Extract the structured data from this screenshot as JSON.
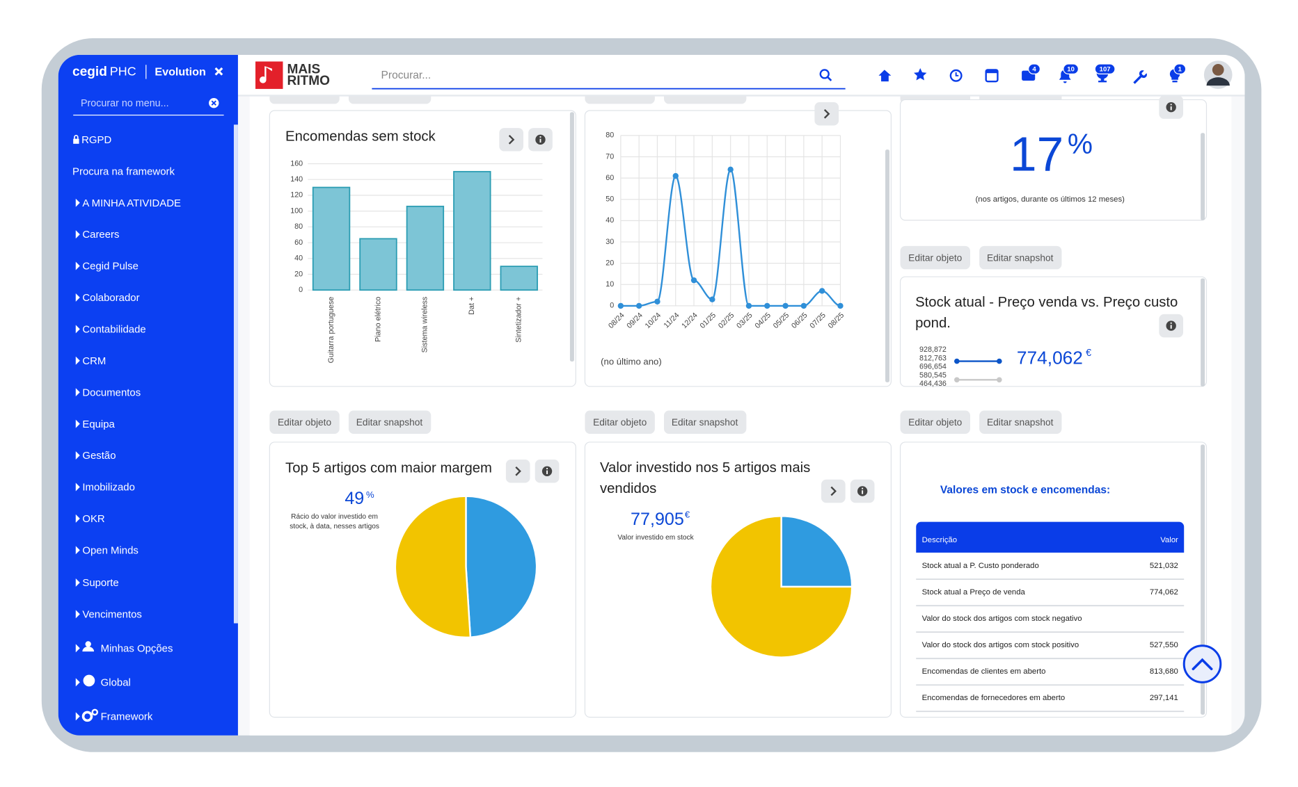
{
  "sidebar": {
    "brand": "cegid",
    "product": "PHC",
    "edition": "Evolution",
    "search_placeholder": "Procurar no menu...",
    "items": [
      "RGPD",
      "Procura na framework",
      "A MINHA ATIVIDADE",
      "Careers",
      "Cegid Pulse",
      "Colaborador",
      "Contabilidade",
      "CRM",
      "Documentos",
      "Equipa",
      "Gestão",
      "Imobilizado",
      "OKR",
      "Open Minds",
      "Suporte",
      "Vencimentos",
      "Minhas Opções",
      "Global",
      "Framework"
    ]
  },
  "header": {
    "logo": [
      "MAIS",
      "RITMO"
    ],
    "search_placeholder": "Procurar...",
    "badges": [
      4,
      10,
      107,
      1
    ]
  },
  "buttons": [
    "Editar objeto",
    "Editar snapshot"
  ],
  "bar_chart": {
    "type": "bar",
    "title": "Encomendas sem stock",
    "categories": [
      "Guitarra portuguese",
      "Piano elétrico",
      "Sistema wireless",
      "Dat +",
      "Sintetizador +"
    ],
    "values": [
      130,
      65,
      106,
      150,
      30
    ],
    "color": "#7dc5d6",
    "edge_color": "#2b9db3",
    "ylim": [
      0,
      160
    ],
    "yticks": [
      0,
      20,
      40,
      60,
      80,
      100,
      120,
      140,
      160
    ],
    "grid": true
  },
  "line_chart": {
    "type": "line",
    "categories": [
      "08/24",
      "09/24",
      "10/24",
      "11/24",
      "12/24",
      "01/25",
      "02/25",
      "03/25",
      "04/25",
      "05/25",
      "06/25",
      "07/25",
      "08/25"
    ],
    "series": [
      {
        "color": "#2f8fd8",
        "values": [
          0,
          0,
          2,
          61,
          12,
          3,
          64,
          0,
          0,
          0,
          0,
          7,
          0
        ]
      }
    ],
    "ylim": [
      0,
      80
    ],
    "yticks": [
      0,
      10,
      20,
      30,
      40,
      50,
      60,
      70,
      80
    ],
    "grid": true,
    "note": "(no último ano)"
  },
  "kpi": {
    "value": 17,
    "unit": "%",
    "note": "(nos artigos, durante os últimos 12 meses)"
  },
  "stock_chart": {
    "type": "line",
    "title": "Stock atual - Preço venda vs. Preço custo pond.",
    "value_label": "774,062",
    "unit": "€",
    "series": [
      {
        "color": "#0c55c8",
        "values": [
          774062,
          774062
        ]
      },
      {
        "color": "#c8c8c8",
        "values": [
          521032,
          521032
        ]
      }
    ],
    "ylim": [
      464436,
      928872
    ],
    "yticks": [
      {
        "value": 464436,
        "label": "464,436"
      },
      {
        "value": 580545,
        "label": "580,545"
      },
      {
        "value": 696654,
        "label": "696,654"
      },
      {
        "value": 812763,
        "label": "812,763"
      },
      {
        "value": 928872,
        "label": "928,872"
      }
    ],
    "grid": false
  },
  "pie_margin": {
    "type": "pie",
    "title": "Top 5 artigos com maior margem",
    "value": 49,
    "unit": "%",
    "note": "Rácio do valor investido em stock, à data, nesses artigos",
    "values": [
      49,
      51
    ],
    "colors": [
      "#2f9be0",
      "#f2c400"
    ]
  },
  "pie_invested": {
    "type": "pie",
    "title": "Valor investido nos 5 artigos mais vendidos",
    "value_label": "77,905",
    "unit": "€",
    "note": "Valor investido em stock",
    "values": [
      25,
      75
    ],
    "colors": [
      "#2f9be0",
      "#f2c400"
    ]
  },
  "table": {
    "title": "Valores em stock e encomendas:",
    "header": [
      "Descrição",
      "Valor"
    ],
    "rows": [
      [
        "Stock atual a P. Custo ponderado",
        "521,032"
      ],
      [
        "Stock atual a Preço de venda",
        "774,062"
      ],
      [
        "Valor do stock dos artigos com stock negativo"
      ],
      [
        "Valor do stock dos artigos com stock positivo",
        "527,550"
      ],
      [
        "Encomendas de clientes em aberto",
        "813,680"
      ],
      [
        "Encomendas de fornecedores em aberto",
        "297,141"
      ]
    ]
  }
}
